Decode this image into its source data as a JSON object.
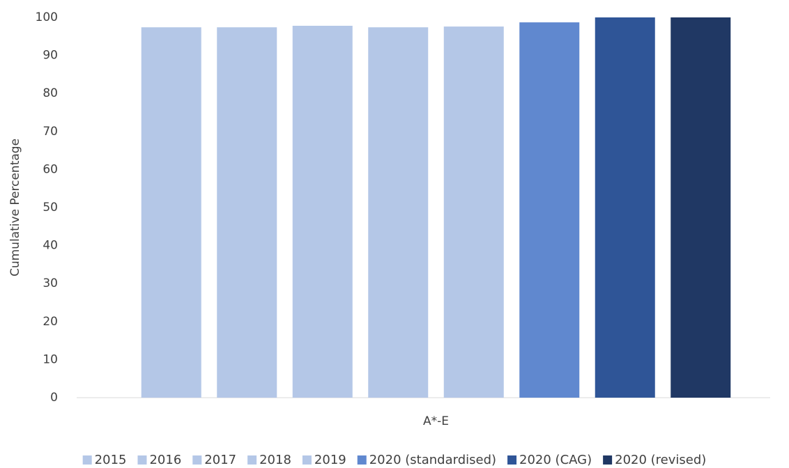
{
  "chart_data": {
    "type": "bar",
    "categories": [
      "A*-E"
    ],
    "ylabel": "Cumulative Percentage",
    "ylim": [
      0,
      100
    ],
    "yticks": [
      0,
      10,
      20,
      30,
      40,
      50,
      60,
      70,
      80,
      90,
      100
    ],
    "grid": false,
    "legend": "bottom",
    "series": [
      {
        "name": "2015",
        "color": "#b4c7e7",
        "values": [
          97.4
        ]
      },
      {
        "name": "2016",
        "color": "#b4c7e7",
        "values": [
          97.4
        ]
      },
      {
        "name": "2017",
        "color": "#b4c7e7",
        "values": [
          97.8
        ]
      },
      {
        "name": "2018",
        "color": "#b4c7e7",
        "values": [
          97.4
        ]
      },
      {
        "name": "2019",
        "color": "#b4c7e7",
        "values": [
          97.6
        ]
      },
      {
        "name": "2020 (standardised)",
        "color": "#6088cf",
        "values": [
          98.7
        ]
      },
      {
        "name": "2020 (CAG)",
        "color": "#2f5597",
        "values": [
          100
        ]
      },
      {
        "name": "2020 (revised)",
        "color": "#203864",
        "values": [
          100
        ]
      }
    ]
  }
}
